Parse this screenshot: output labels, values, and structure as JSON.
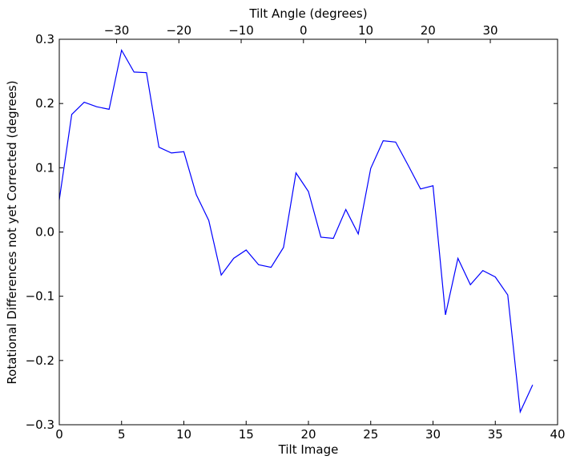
{
  "chart_data": {
    "type": "line",
    "title": "",
    "xlabel": "Tilt Image",
    "ylabel": "Rotational Differences not yet Corrected (degrees)",
    "top_xlabel": "Tilt Angle (degrees)",
    "xlim": [
      0,
      40
    ],
    "ylim": [
      -0.3,
      0.3
    ],
    "top_xlim": [
      -39.2,
      40.8
    ],
    "xticks": [
      0,
      5,
      10,
      15,
      20,
      25,
      30,
      35,
      40
    ],
    "xtick_labels": [
      "0",
      "5",
      "10",
      "15",
      "20",
      "25",
      "30",
      "35",
      "40"
    ],
    "yticks": [
      -0.3,
      -0.2,
      -0.1,
      0.0,
      0.1,
      0.2,
      0.3
    ],
    "ytick_labels": [
      "−0.3",
      "−0.2",
      "−0.1",
      "0.0",
      "0.1",
      "0.2",
      "0.3"
    ],
    "top_xticks": [
      -30,
      -20,
      -10,
      0,
      10,
      20,
      30
    ],
    "top_xtick_labels": [
      "−30",
      "−20",
      "−10",
      "0",
      "10",
      "20",
      "30"
    ],
    "grid": false,
    "series": [
      {
        "color": "#0000ff",
        "x": [
          0,
          1,
          2,
          3,
          4,
          5,
          6,
          7,
          8,
          9,
          10,
          11,
          12,
          13,
          14,
          15,
          16,
          17,
          18,
          19,
          20,
          21,
          22,
          23,
          24,
          25,
          26,
          27,
          28,
          29,
          30,
          31,
          32,
          33,
          34,
          35,
          36,
          37,
          38
        ],
        "values": [
          0.05,
          0.183,
          0.202,
          0.195,
          0.191,
          0.283,
          0.249,
          0.248,
          0.132,
          0.123,
          0.125,
          0.058,
          0.018,
          -0.067,
          -0.041,
          -0.028,
          -0.051,
          -0.055,
          -0.024,
          0.092,
          0.063,
          -0.008,
          -0.01,
          0.035,
          -0.003,
          0.099,
          0.142,
          0.14,
          0.104,
          0.067,
          0.072,
          -0.129,
          -0.041,
          -0.082,
          -0.06,
          -0.07,
          -0.098,
          -0.28,
          -0.238
        ]
      }
    ]
  }
}
